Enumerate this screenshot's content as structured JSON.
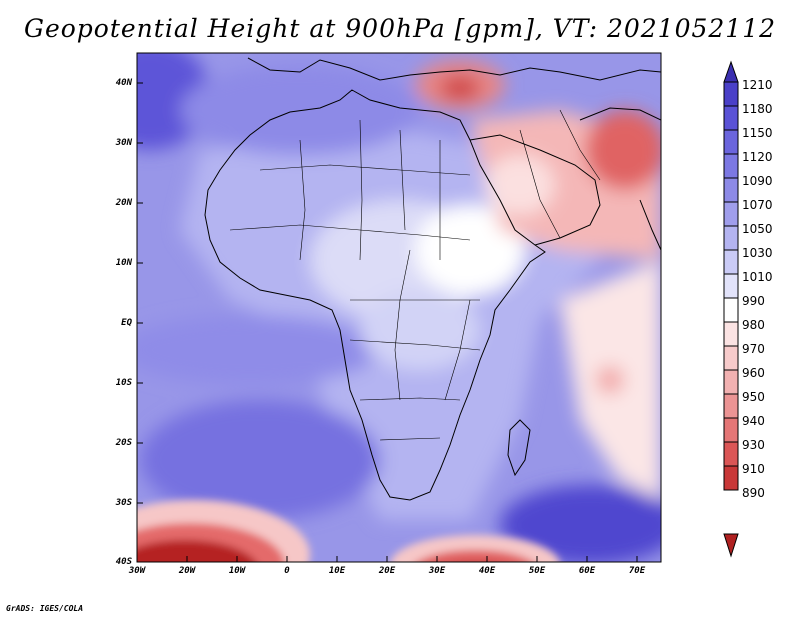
{
  "title": "Geopotential Height at 900hPa [gpm], VT: 2021052112",
  "credit": "GrADS: IGES/COLA",
  "map": {
    "variable": "Geopotential Height",
    "level": "900hPa",
    "units": "gpm",
    "valid_time": "2021052112",
    "lat_labels": [
      "40N",
      "30N",
      "20N",
      "10N",
      "EQ",
      "10S",
      "20S",
      "30S",
      "40S"
    ],
    "lon_labels": [
      "30W",
      "20W",
      "10W",
      "0",
      "10E",
      "20E",
      "30E",
      "40E",
      "50E",
      "60E",
      "70E"
    ]
  },
  "colorbar": {
    "labels": [
      "1210",
      "1180",
      "1150",
      "1120",
      "1090",
      "1070",
      "1050",
      "1030",
      "1010",
      "990",
      "980",
      "970",
      "960",
      "950",
      "940",
      "930",
      "910",
      "890"
    ],
    "colors": [
      "#3b2fb0",
      "#4a40c8",
      "#5a52d6",
      "#6b65dd",
      "#7c78e3",
      "#8d8ae7",
      "#a09eec",
      "#b4b4f1",
      "#cacbf6",
      "#e2e3fa",
      "#ffffff",
      "#fbe3e3",
      "#f7cbcb",
      "#f2b1b1",
      "#ec9494",
      "#e57676",
      "#db5656",
      "#c93838",
      "#b02121"
    ]
  }
}
